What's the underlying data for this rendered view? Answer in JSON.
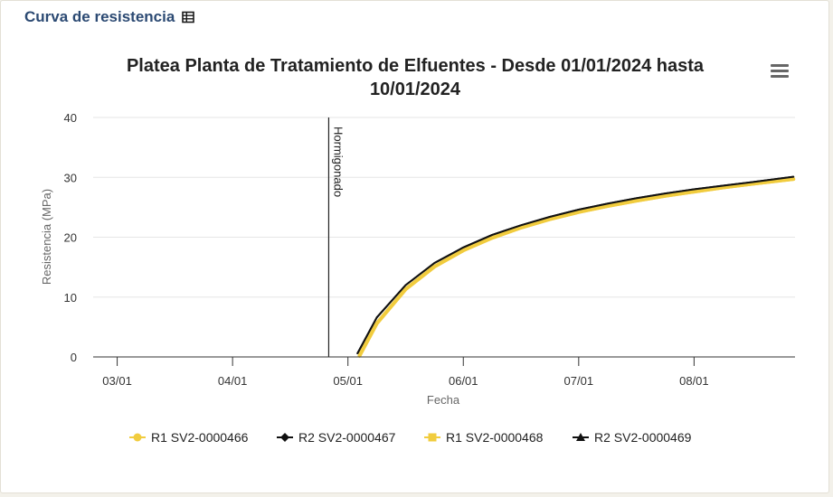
{
  "header": {
    "title": "Curva de resistencia",
    "icon": "table-icon"
  },
  "menu": {
    "icon": "hamburger-menu-icon"
  },
  "chart_data": {
    "type": "line",
    "title": "Platea Planta de Tratamiento de Elfuentes - Desde 01/01/2024 hasta 10/01/2024",
    "title_lines": [
      "Platea Planta de Tratamiento de Elfuentes - Desde 01/01/2024 hasta",
      "10/01/2024"
    ],
    "xlabel": "Fecha",
    "ylabel": "Resistencia (MPa)",
    "x_ticks": [
      "03/01",
      "04/01",
      "05/01",
      "06/01",
      "07/01",
      "08/01"
    ],
    "x_range": [
      "2024-01-02T19:00",
      "2024-01-08T21:00"
    ],
    "ylim": [
      0,
      40
    ],
    "y_ticks": [
      0,
      10,
      20,
      30,
      40
    ],
    "grid": true,
    "legend_position": "bottom",
    "annotations": [
      {
        "type": "vertical-line",
        "x": "2024-01-04T20:00",
        "label": "Hormigonado"
      }
    ],
    "series": [
      {
        "name": "R1 SV2-0000466",
        "color": "#f1cc3e",
        "marker": "circle",
        "x": [
          "2024-01-05T02:24",
          "2024-01-05T06:00",
          "2024-01-05T12:00",
          "2024-01-05T18:00",
          "2024-01-06T00:00",
          "2024-01-06T06:00",
          "2024-01-06T12:00",
          "2024-01-06T18:00",
          "2024-01-07T00:00",
          "2024-01-07T06:00",
          "2024-01-07T12:00",
          "2024-01-07T18:00",
          "2024-01-08T00:00",
          "2024-01-08T06:00",
          "2024-01-08T12:00",
          "2024-01-08T20:40"
        ],
        "y": [
          0.2,
          5.6,
          11.3,
          15.1,
          17.8,
          19.9,
          21.6,
          23.0,
          24.2,
          25.2,
          26.1,
          26.9,
          27.6,
          28.3,
          28.9,
          29.7
        ]
      },
      {
        "name": "R2 SV2-0000467",
        "color": "#111111",
        "marker": "diamond",
        "x": [
          "2024-01-05T02:00",
          "2024-01-05T06:00",
          "2024-01-05T12:00",
          "2024-01-05T18:00",
          "2024-01-06T00:00",
          "2024-01-06T06:00",
          "2024-01-06T12:00",
          "2024-01-06T18:00",
          "2024-01-07T00:00",
          "2024-01-07T06:00",
          "2024-01-07T12:00",
          "2024-01-07T18:00",
          "2024-01-08T00:00",
          "2024-01-08T06:00",
          "2024-01-08T12:00",
          "2024-01-08T20:40"
        ],
        "y": [
          0.6,
          6.6,
          12.0,
          15.7,
          18.3,
          20.4,
          22.0,
          23.4,
          24.6,
          25.6,
          26.5,
          27.3,
          28.0,
          28.6,
          29.2,
          30.1
        ]
      },
      {
        "name": "R1 SV2-0000468",
        "color": "#f1cc3e",
        "marker": "square",
        "x": [
          "2024-01-05T02:24",
          "2024-01-05T06:00",
          "2024-01-05T12:00",
          "2024-01-05T18:00",
          "2024-01-06T00:00",
          "2024-01-06T06:00",
          "2024-01-06T12:00",
          "2024-01-06T18:00",
          "2024-01-07T00:00",
          "2024-01-07T06:00",
          "2024-01-07T12:00",
          "2024-01-07T18:00",
          "2024-01-08T00:00",
          "2024-01-08T06:00",
          "2024-01-08T12:00",
          "2024-01-08T20:40"
        ],
        "y": [
          0.2,
          5.6,
          11.3,
          15.1,
          17.8,
          19.9,
          21.6,
          23.0,
          24.2,
          25.2,
          26.1,
          26.9,
          27.6,
          28.3,
          28.9,
          29.7
        ]
      },
      {
        "name": "R2 SV2-0000469",
        "color": "#111111",
        "marker": "triangle",
        "x": [
          "2024-01-05T02:00",
          "2024-01-05T06:00",
          "2024-01-05T12:00",
          "2024-01-05T18:00",
          "2024-01-06T00:00",
          "2024-01-06T06:00",
          "2024-01-06T12:00",
          "2024-01-06T18:00",
          "2024-01-07T00:00",
          "2024-01-07T06:00",
          "2024-01-07T12:00",
          "2024-01-07T18:00",
          "2024-01-08T00:00",
          "2024-01-08T06:00",
          "2024-01-08T12:00",
          "2024-01-08T20:40"
        ],
        "y": [
          0.6,
          6.6,
          12.0,
          15.7,
          18.3,
          20.4,
          22.0,
          23.4,
          24.6,
          25.6,
          26.5,
          27.3,
          28.0,
          28.6,
          29.2,
          30.1
        ]
      }
    ]
  }
}
